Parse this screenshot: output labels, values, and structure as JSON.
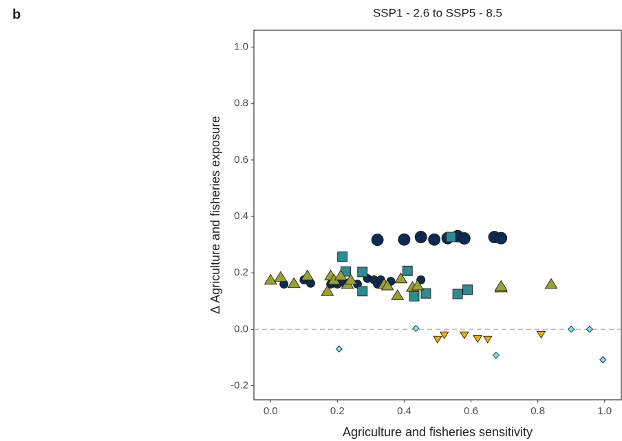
{
  "panel_label": "b",
  "chart_data": {
    "type": "scatter",
    "title": "SSP1 - 2.6 to SSP5 - 8.5",
    "x_label": "Agriculture and fisheries sensitivity",
    "y_label": "Δ Agriculture and fisheries exposure",
    "xlim": [
      -0.05,
      1.05
    ],
    "ylim": [
      -0.25,
      1.06
    ],
    "xticks": [
      {
        "value": 0,
        "label": "0.0"
      },
      {
        "value": 0.2,
        "label": "0.2"
      },
      {
        "value": 0.4,
        "label": "0.4"
      },
      {
        "value": 0.6,
        "label": "0.6"
      },
      {
        "value": 0.8,
        "label": "0.8"
      },
      {
        "value": 1,
        "label": "1.0"
      }
    ],
    "yticks": [
      {
        "value": -0.2,
        "label": "-0.2"
      },
      {
        "value": 0,
        "label": "0.0"
      },
      {
        "value": 0.2,
        "label": "0.2"
      },
      {
        "value": 0.4,
        "label": "0.4"
      },
      {
        "value": 0.6,
        "label": "0.6"
      },
      {
        "value": 0.8,
        "label": "0.8"
      },
      {
        "value": 1,
        "label": "1.0"
      }
    ],
    "grid": false,
    "reference_line": 0,
    "series": [
      {
        "color": "#0d2b52",
        "marker": "circle",
        "x": [
          0.32,
          0.4,
          0.45,
          0.49,
          0.53,
          0.56,
          0.58,
          0.67,
          0.69
        ],
        "values": [
          0.317,
          0.318,
          0.327,
          0.318,
          0.323,
          0.33,
          0.322,
          0.327,
          0.323
        ]
      },
      {
        "color": "#0d2b52",
        "marker": "circle",
        "x": [
          0.04,
          0.1,
          0.12,
          0.18,
          0.2,
          0.22,
          0.26,
          0.29,
          0.31,
          0.32,
          0.33,
          0.36,
          0.45
        ],
        "values": [
          0.16,
          0.175,
          0.163,
          0.16,
          0.16,
          0.165,
          0.16,
          0.18,
          0.175,
          0.16,
          0.175,
          0.17,
          0.175
        ]
      },
      {
        "color": "#2e8b8f",
        "marker": "square",
        "x": [
          0.215,
          0.225,
          0.275,
          0.275,
          0.41,
          0.43,
          0.465,
          0.54,
          0.56,
          0.59
        ],
        "values": [
          0.257,
          0.205,
          0.203,
          0.135,
          0.207,
          0.117,
          0.127,
          0.327,
          0.125,
          0.14
        ]
      },
      {
        "color": "#9aa130",
        "marker": "triangle-up",
        "x": [
          0.0,
          0.03,
          0.07,
          0.11,
          0.17,
          0.18,
          0.19,
          0.21,
          0.23,
          0.24,
          0.34,
          0.35,
          0.38,
          0.39,
          0.425,
          0.44,
          0.69,
          0.69,
          0.84
        ],
        "values": [
          0.175,
          0.185,
          0.163,
          0.19,
          0.135,
          0.19,
          0.175,
          0.19,
          0.16,
          0.175,
          0.16,
          0.155,
          0.12,
          0.18,
          0.15,
          0.155,
          0.148,
          0.153,
          0.16
        ]
      },
      {
        "color": "#e8b000",
        "marker": "triangle-down",
        "x": [
          0.5,
          0.52,
          0.58,
          0.62,
          0.65,
          0.81
        ],
        "values": [
          -0.035,
          -0.02,
          -0.02,
          -0.033,
          -0.035,
          -0.018
        ]
      },
      {
        "color": "#6ee8e8",
        "marker": "diamond",
        "x": [
          0.205,
          0.435,
          0.675,
          0.9,
          0.955,
          0.995
        ],
        "values": [
          -0.07,
          0.003,
          -0.092,
          0.0,
          0.0,
          -0.108
        ]
      }
    ]
  }
}
